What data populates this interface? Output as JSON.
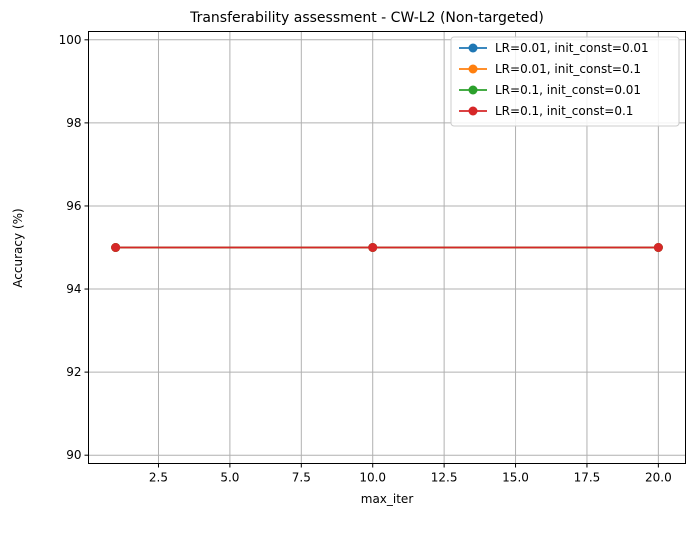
{
  "chart_data": {
    "type": "line",
    "title": "Transferability assessment - CW-L2 (Non-targeted)",
    "xlabel": "max_iter",
    "ylabel": "Accuracy (%)",
    "x": [
      1,
      10,
      20
    ],
    "xlim": [
      0.05,
      20.95
    ],
    "ylim": [
      89.8,
      100.2
    ],
    "xticks": [
      2.5,
      5.0,
      7.5,
      10.0,
      12.5,
      15.0,
      17.5,
      20.0
    ],
    "xtick_labels": [
      "2.5",
      "5.0",
      "7.5",
      "10.0",
      "12.5",
      "15.0",
      "17.5",
      "20.0"
    ],
    "yticks": [
      90,
      92,
      94,
      96,
      98,
      100
    ],
    "ytick_labels": [
      "90",
      "92",
      "94",
      "96",
      "98",
      "100"
    ],
    "grid": true,
    "legend_position": "top-right",
    "series": [
      {
        "name": "LR=0.01, init_const=0.01",
        "color": "#1f77b4",
        "values": [
          95,
          95,
          95
        ]
      },
      {
        "name": "LR=0.01, init_const=0.1",
        "color": "#ff7f0e",
        "values": [
          95,
          95,
          95
        ]
      },
      {
        "name": "LR=0.1, init_const=0.01",
        "color": "#2ca02c",
        "values": [
          95,
          95,
          95
        ]
      },
      {
        "name": "LR=0.1, init_const=0.1",
        "color": "#d62728",
        "values": [
          95,
          95,
          95
        ]
      }
    ]
  }
}
